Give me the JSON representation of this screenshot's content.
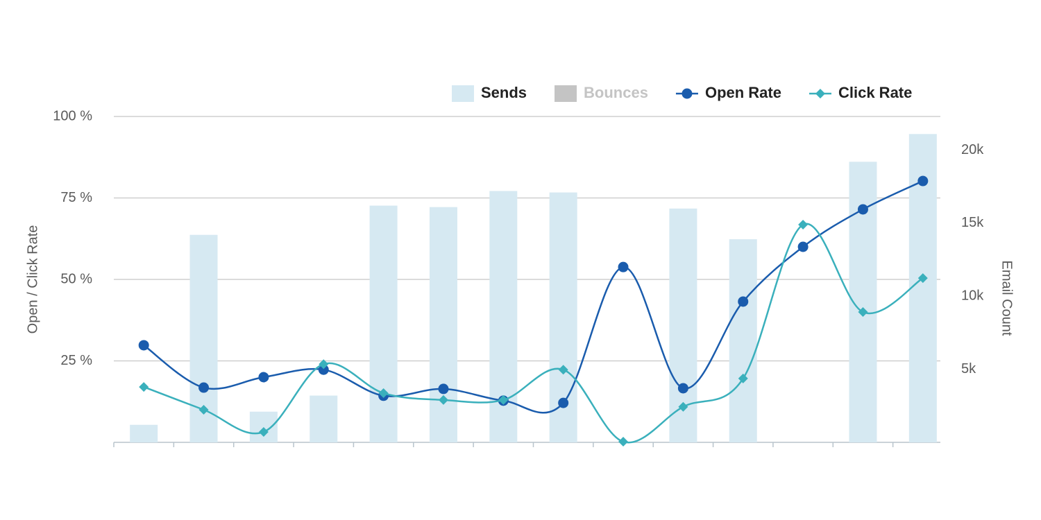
{
  "chart_data": {
    "type": "combo",
    "categories": [
      null,
      null,
      null,
      null,
      null,
      null,
      null,
      null,
      null,
      null,
      null,
      null,
      null,
      null
    ],
    "series": [
      {
        "name": "Sends",
        "type": "bar",
        "axis": "y2",
        "color": "#d6e9f2",
        "values": [
          1200,
          14200,
          2100,
          3200,
          16200,
          16100,
          17200,
          17100,
          null,
          16000,
          13900,
          null,
          19200,
          21100
        ]
      },
      {
        "name": "Bounces",
        "type": "bar",
        "axis": "y2",
        "color": "#c4c4c4",
        "hidden": true,
        "values": [
          null,
          null,
          null,
          null,
          null,
          null,
          null,
          null,
          null,
          null,
          null,
          null,
          null,
          null
        ]
      },
      {
        "name": "Open Rate",
        "type": "line",
        "marker": "circle",
        "color": "#1a5cad",
        "values": [
          29.8,
          16.8,
          20.0,
          22.3,
          14.3,
          16.4,
          12.8,
          12.1,
          53.8,
          16.6,
          43.2,
          60.0,
          71.5,
          80.2
        ]
      },
      {
        "name": "Click Rate",
        "type": "line",
        "marker": "diamond",
        "color": "#3ab0bc",
        "values": [
          17.0,
          10.0,
          3.2,
          24.0,
          15.1,
          13.0,
          13.0,
          22.3,
          0.2,
          10.9,
          19.6,
          66.8,
          40.0,
          50.4
        ]
      }
    ],
    "y_label": "Open / Click Rate",
    "y2_label": "Email Count",
    "ylim": [
      0,
      100
    ],
    "yticks": [
      {
        "value": 25,
        "label": "25 %"
      },
      {
        "value": 50,
        "label": "50 %"
      },
      {
        "value": 75,
        "label": "75 %"
      },
      {
        "value": 100,
        "label": "100 %"
      }
    ],
    "y2lim": [
      0,
      22300
    ],
    "y2ticks": [
      {
        "value": 5000,
        "label": "5k"
      },
      {
        "value": 10000,
        "label": "10k"
      },
      {
        "value": 15000,
        "label": "15k"
      },
      {
        "value": 20000,
        "label": "20k"
      }
    ],
    "grid": true,
    "legend": "top-right"
  }
}
